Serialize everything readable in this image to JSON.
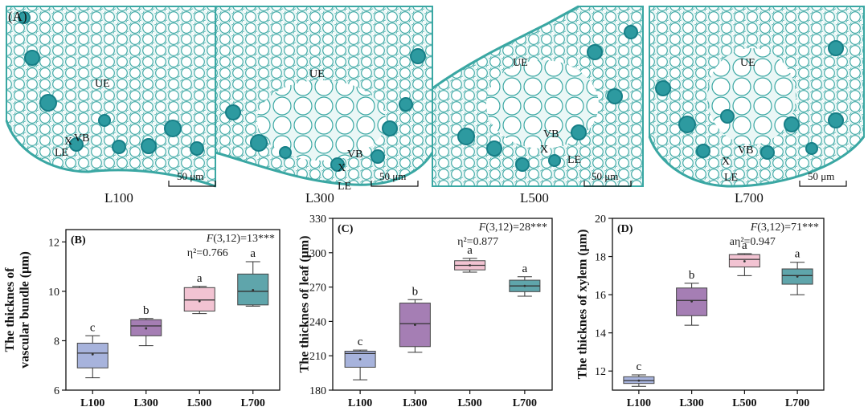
{
  "figure": {
    "panel_a_letter": "(A)",
    "scale_bar_label": "50 μm"
  },
  "micrographs": [
    {
      "caption": "L100",
      "labels": {
        "ue": "UE",
        "vb": "VB",
        "x": "X",
        "le": "LE"
      }
    },
    {
      "caption": "L300",
      "labels": {
        "ue": "UE",
        "vb": "VB",
        "x": "X",
        "le": "LE"
      }
    },
    {
      "caption": "L500",
      "labels": {
        "ue": "UE",
        "vb": "VB",
        "x": "X",
        "le": "LE"
      }
    },
    {
      "caption": "L700",
      "labels": {
        "ue": "UE",
        "vb": "VB",
        "x": "X",
        "le": "LE"
      }
    }
  ],
  "colors": {
    "tissue": "#bfe6e3",
    "cell_wall": "#3aa7a3",
    "bundle": "#177f87",
    "groups": [
      "#a7b3dc",
      "#a57eb4",
      "#f2c3d2",
      "#5fa5ab"
    ]
  },
  "chart_data": [
    {
      "type": "box",
      "panel": "(B)",
      "title": "",
      "ylabel": "The thicknes of vascular bundle (μm)",
      "ylabel_lines": [
        "The thicknes of",
        "vascular bundle (μm)"
      ],
      "xlabel": "",
      "categories": [
        "L100",
        "L300",
        "L500",
        "L700"
      ],
      "ylim": [
        6,
        12.5
      ],
      "yticks": [
        6,
        8,
        10,
        12
      ],
      "stat_prefix": "F",
      "stat_rest": "(3,12)=13***",
      "effect": "η²=0.766",
      "boxes": [
        {
          "min": 6.5,
          "q1": 6.9,
          "median": 7.5,
          "q3": 7.9,
          "max": 8.2,
          "mean": 7.45,
          "letter": "c"
        },
        {
          "min": 7.8,
          "q1": 8.2,
          "median": 8.6,
          "q3": 8.85,
          "max": 8.9,
          "mean": 8.5,
          "letter": "b"
        },
        {
          "min": 9.1,
          "q1": 9.2,
          "median": 9.65,
          "q3": 10.15,
          "max": 10.2,
          "mean": 9.6,
          "letter": "a"
        },
        {
          "min": 9.4,
          "q1": 9.45,
          "median": 10.0,
          "q3": 10.7,
          "max": 11.2,
          "mean": 10.05,
          "letter": "a"
        }
      ]
    },
    {
      "type": "box",
      "panel": "(C)",
      "title": "",
      "ylabel": "The thicknes of leaf (μm)",
      "ylabel_lines": [
        "The thicknes of leaf (μm)"
      ],
      "xlabel": "",
      "categories": [
        "L100",
        "L300",
        "L500",
        "L700"
      ],
      "ylim": [
        180,
        330
      ],
      "yticks": [
        180,
        210,
        240,
        270,
        300,
        330
      ],
      "stat_prefix": "F",
      "stat_rest": "(3,12)=28***",
      "effect": "η²=0.877",
      "boxes": [
        {
          "min": 189,
          "q1": 200,
          "median": 212,
          "q3": 214,
          "max": 215,
          "mean": 207,
          "letter": "c"
        },
        {
          "min": 213,
          "q1": 218,
          "median": 238,
          "q3": 256,
          "max": 259,
          "mean": 237,
          "letter": "b"
        },
        {
          "min": 283,
          "q1": 285,
          "median": 289,
          "q3": 293,
          "max": 295,
          "mean": 289,
          "letter": "a"
        },
        {
          "min": 262,
          "q1": 266,
          "median": 271,
          "q3": 276,
          "max": 279,
          "mean": 271,
          "letter": "a"
        }
      ]
    },
    {
      "type": "box",
      "panel": "(D)",
      "title": "",
      "ylabel": "The thicknes of xylem (μm)",
      "ylabel_lines": [
        "The thicknes of xylem (μm)"
      ],
      "xlabel": "",
      "categories": [
        "L100",
        "L300",
        "L500",
        "L700"
      ],
      "ylim": [
        11,
        20
      ],
      "yticks": [
        12,
        14,
        16,
        18,
        20
      ],
      "stat_prefix": "F",
      "stat_rest": "(3,12)=71***",
      "effect": "aη²=0.947",
      "boxes": [
        {
          "min": 11.2,
          "q1": 11.35,
          "median": 11.5,
          "q3": 11.7,
          "max": 11.8,
          "mean": 11.5,
          "letter": "c"
        },
        {
          "min": 14.4,
          "q1": 14.9,
          "median": 15.7,
          "q3": 16.35,
          "max": 16.6,
          "mean": 15.65,
          "letter": "b"
        },
        {
          "min": 17.0,
          "q1": 17.45,
          "median": 17.85,
          "q3": 18.1,
          "max": 18.15,
          "mean": 17.75,
          "letter": "a"
        },
        {
          "min": 16.0,
          "q1": 16.55,
          "median": 17.0,
          "q3": 17.35,
          "max": 17.7,
          "mean": 16.95,
          "letter": "a"
        }
      ]
    }
  ]
}
